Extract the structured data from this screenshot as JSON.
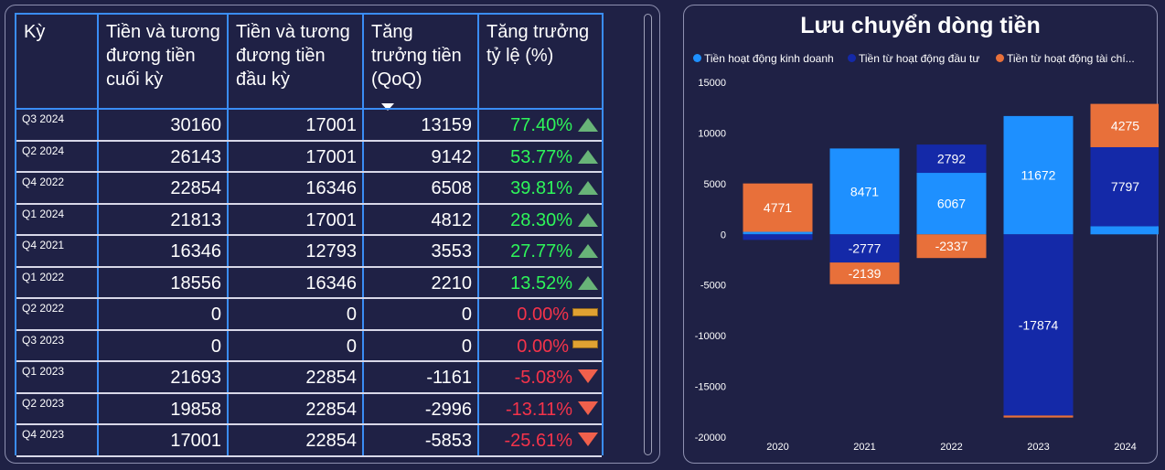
{
  "table": {
    "headers": {
      "period": "Kỳ",
      "cash_end": "Tiền và tương đương tiền cuối kỳ",
      "cash_begin": "Tiền và tương đương tiền đầu kỳ",
      "growth_qoq": "Tăng trưởng tiền (QoQ)",
      "growth_pct": "Tăng trưởng tỷ lệ (%)"
    },
    "rows": [
      {
        "period": "Q3 2024",
        "cash_end": "30160",
        "cash_begin": "17001",
        "growth": "13159",
        "pct": "77.40%",
        "trend": "up"
      },
      {
        "period": "Q2 2024",
        "cash_end": "26143",
        "cash_begin": "17001",
        "growth": "9142",
        "pct": "53.77%",
        "trend": "up"
      },
      {
        "period": "Q4 2022",
        "cash_end": "22854",
        "cash_begin": "16346",
        "growth": "6508",
        "pct": "39.81%",
        "trend": "up"
      },
      {
        "period": "Q1 2024",
        "cash_end": "21813",
        "cash_begin": "17001",
        "growth": "4812",
        "pct": "28.30%",
        "trend": "up"
      },
      {
        "period": "Q4 2021",
        "cash_end": "16346",
        "cash_begin": "12793",
        "growth": "3553",
        "pct": "27.77%",
        "trend": "up"
      },
      {
        "period": "Q1 2022",
        "cash_end": "18556",
        "cash_begin": "16346",
        "growth": "2210",
        "pct": "13.52%",
        "trend": "up"
      },
      {
        "period": "Q2 2022",
        "cash_end": "0",
        "cash_begin": "0",
        "growth": "0",
        "pct": "0.00%",
        "trend": "flat"
      },
      {
        "period": "Q3 2023",
        "cash_end": "0",
        "cash_begin": "0",
        "growth": "0",
        "pct": "0.00%",
        "trend": "flat"
      },
      {
        "period": "Q1 2023",
        "cash_end": "21693",
        "cash_begin": "22854",
        "growth": "-1161",
        "pct": "-5.08%",
        "trend": "down"
      },
      {
        "period": "Q2 2023",
        "cash_end": "19858",
        "cash_begin": "22854",
        "growth": "-2996",
        "pct": "-13.11%",
        "trend": "down"
      },
      {
        "period": "Q4 2023",
        "cash_end": "17001",
        "cash_begin": "22854",
        "growth": "-5853",
        "pct": "-25.61%",
        "trend": "down"
      }
    ]
  },
  "chart_data": {
    "type": "bar",
    "stacked": true,
    "title": "Lưu chuyển dòng tiền",
    "categories": [
      "2020",
      "2021",
      "2022",
      "2023",
      "2024"
    ],
    "ylim": [
      -20000,
      15000
    ],
    "yticks": [
      15000,
      10000,
      5000,
      0,
      -5000,
      -10000,
      -15000,
      -20000
    ],
    "legend_position": "top",
    "legend_labels": [
      "Tiền hoạt động kinh doanh",
      "Tiền từ hoạt động đầu tư",
      "Tiền từ hoạt động tài chí..."
    ],
    "series": [
      {
        "name": "Tiền hoạt động kinh doanh",
        "color": "#1e90ff",
        "values": [
          250,
          8471,
          6067,
          11672,
          800
        ],
        "labels": [
          "",
          "8471",
          "6067",
          "11672",
          ""
        ]
      },
      {
        "name": "Tiền từ hoạt động đầu tư",
        "color": "#1429a8",
        "values": [
          -550,
          -2777,
          2792,
          -17874,
          7797
        ],
        "labels": [
          "",
          "-2777",
          "2792",
          "-17874",
          "7797"
        ]
      },
      {
        "name": "Tiền từ hoạt động tài chính",
        "color": "#e8703a",
        "values": [
          4771,
          -2139,
          -2337,
          -200,
          4275
        ],
        "labels": [
          "4771",
          "-2139",
          "-2337",
          "",
          "4275"
        ]
      }
    ]
  },
  "colors": {
    "background": "#1f2145",
    "table_border": "#3a8df5",
    "positive": "#2ef55a",
    "negative": "#f5334a"
  }
}
